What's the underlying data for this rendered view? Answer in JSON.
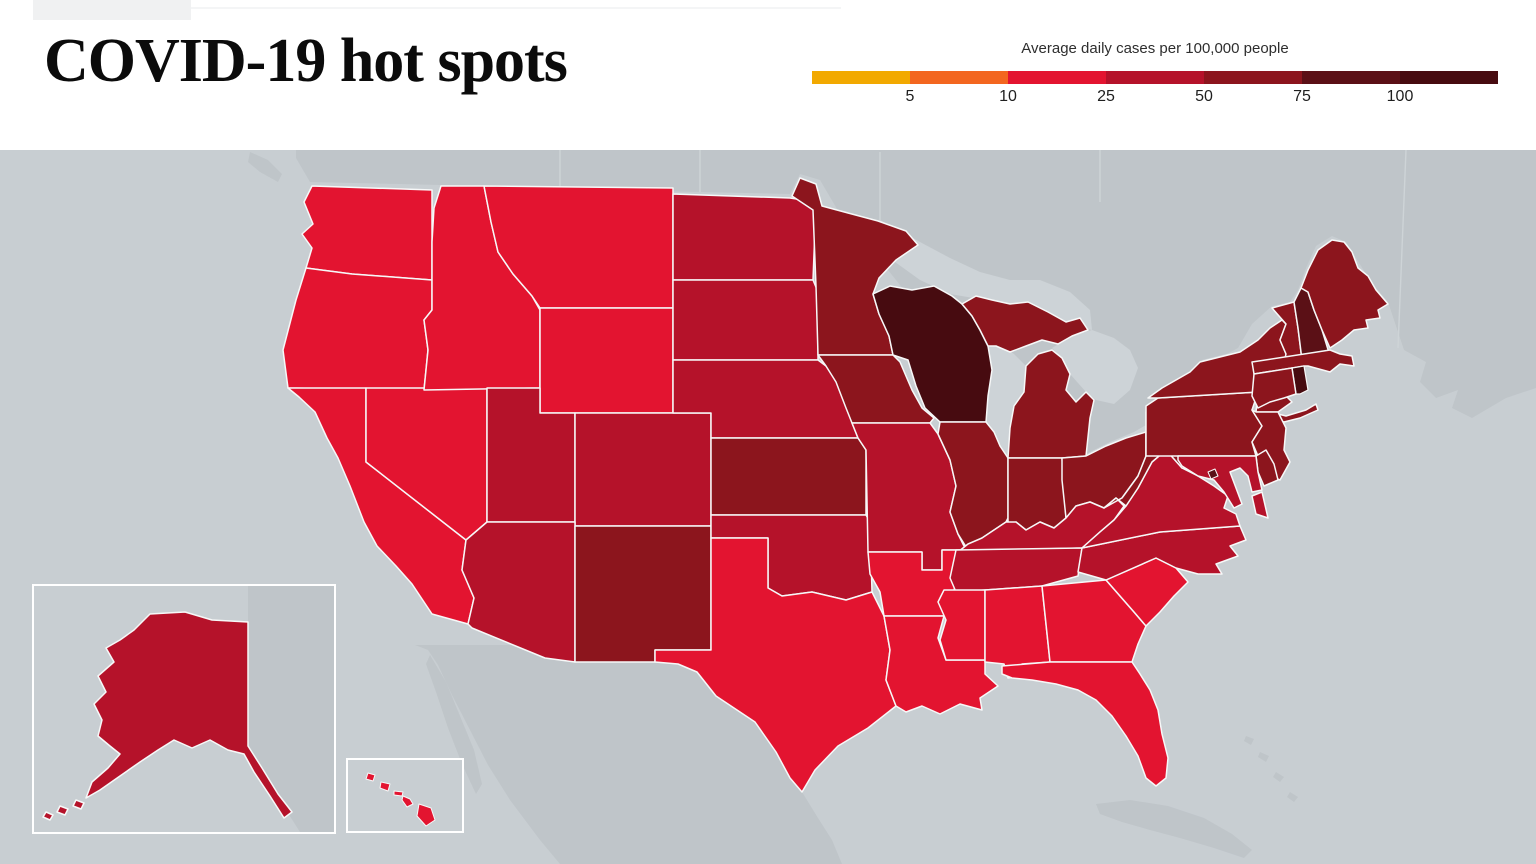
{
  "header": {
    "title": "COVID-19 hot spots"
  },
  "legend": {
    "title": "Average daily cases per 100,000 people",
    "ticks": [
      "5",
      "10",
      "25",
      "50",
      "75",
      "100"
    ],
    "bins": [
      {
        "label": "<5",
        "color": "#F2A900"
      },
      {
        "label": "5-10",
        "color": "#F3661F"
      },
      {
        "label": "10-25",
        "color": "#E31430"
      },
      {
        "label": "25-50",
        "color": "#B5122A"
      },
      {
        "label": "50-75",
        "color": "#8C151D"
      },
      {
        "label": "75-100",
        "color": "#5B1016"
      },
      {
        "label": "100+",
        "color": "#470B10"
      }
    ]
  },
  "map": {
    "colors": {
      "water": "#C8CED2",
      "foreign_land": "#BFC5C9",
      "lakes": "#CDD3D7",
      "state_border": "#F7F8F8",
      "inset_border": "#FFFFFF"
    },
    "states": [
      {
        "code": "WA",
        "name": "Washington",
        "bin": 2
      },
      {
        "code": "OR",
        "name": "Oregon",
        "bin": 2
      },
      {
        "code": "CA",
        "name": "California",
        "bin": 2
      },
      {
        "code": "NV",
        "name": "Nevada",
        "bin": 2
      },
      {
        "code": "ID",
        "name": "Idaho",
        "bin": 2
      },
      {
        "code": "MT",
        "name": "Montana",
        "bin": 2
      },
      {
        "code": "WY",
        "name": "Wyoming",
        "bin": 2
      },
      {
        "code": "UT",
        "name": "Utah",
        "bin": 3
      },
      {
        "code": "CO",
        "name": "Colorado",
        "bin": 3
      },
      {
        "code": "AZ",
        "name": "Arizona",
        "bin": 3
      },
      {
        "code": "NM",
        "name": "New Mexico",
        "bin": 4
      },
      {
        "code": "ND",
        "name": "North Dakota",
        "bin": 3
      },
      {
        "code": "SD",
        "name": "South Dakota",
        "bin": 3
      },
      {
        "code": "NE",
        "name": "Nebraska",
        "bin": 3
      },
      {
        "code": "KS",
        "name": "Kansas",
        "bin": 4
      },
      {
        "code": "OK",
        "name": "Oklahoma",
        "bin": 3
      },
      {
        "code": "TX",
        "name": "Texas",
        "bin": 2
      },
      {
        "code": "MN",
        "name": "Minnesota",
        "bin": 4
      },
      {
        "code": "IA",
        "name": "Iowa",
        "bin": 4
      },
      {
        "code": "MO",
        "name": "Missouri",
        "bin": 3
      },
      {
        "code": "AR",
        "name": "Arkansas",
        "bin": 2
      },
      {
        "code": "LA",
        "name": "Louisiana",
        "bin": 2
      },
      {
        "code": "WI",
        "name": "Wisconsin",
        "bin": 6
      },
      {
        "code": "IL",
        "name": "Illinois",
        "bin": 4
      },
      {
        "code": "MI",
        "name": "Michigan",
        "bin": 4
      },
      {
        "code": "IN",
        "name": "Indiana",
        "bin": 4
      },
      {
        "code": "OH",
        "name": "Ohio",
        "bin": 4
      },
      {
        "code": "KY",
        "name": "Kentucky",
        "bin": 3
      },
      {
        "code": "TN",
        "name": "Tennessee",
        "bin": 3
      },
      {
        "code": "MS",
        "name": "Mississippi",
        "bin": 2
      },
      {
        "code": "AL",
        "name": "Alabama",
        "bin": 2
      },
      {
        "code": "GA",
        "name": "Georgia",
        "bin": 2
      },
      {
        "code": "SC",
        "name": "South Carolina",
        "bin": 2
      },
      {
        "code": "NC",
        "name": "North Carolina",
        "bin": 3
      },
      {
        "code": "VA",
        "name": "Virginia",
        "bin": 3
      },
      {
        "code": "FL",
        "name": "Florida",
        "bin": 2
      },
      {
        "code": "WV",
        "name": "West Virginia",
        "bin": 4
      },
      {
        "code": "PA",
        "name": "Pennsylvania",
        "bin": 4
      },
      {
        "code": "NY",
        "name": "New York",
        "bin": 4
      },
      {
        "code": "NJ",
        "name": "New Jersey",
        "bin": 4
      },
      {
        "code": "DE",
        "name": "Delaware",
        "bin": 4
      },
      {
        "code": "MD",
        "name": "Maryland",
        "bin": 3
      },
      {
        "code": "DC",
        "name": "District of Columbia",
        "bin": 5
      },
      {
        "code": "VT",
        "name": "Vermont",
        "bin": 4
      },
      {
        "code": "NH",
        "name": "New Hampshire",
        "bin": 5
      },
      {
        "code": "ME",
        "name": "Maine",
        "bin": 4
      },
      {
        "code": "MA",
        "name": "Massachusetts",
        "bin": 4
      },
      {
        "code": "RI",
        "name": "Rhode Island",
        "bin": 6
      },
      {
        "code": "CT",
        "name": "Connecticut",
        "bin": 4
      },
      {
        "code": "AK",
        "name": "Alaska",
        "bin": 3
      },
      {
        "code": "HI",
        "name": "Hawaii",
        "bin": 2
      }
    ]
  }
}
